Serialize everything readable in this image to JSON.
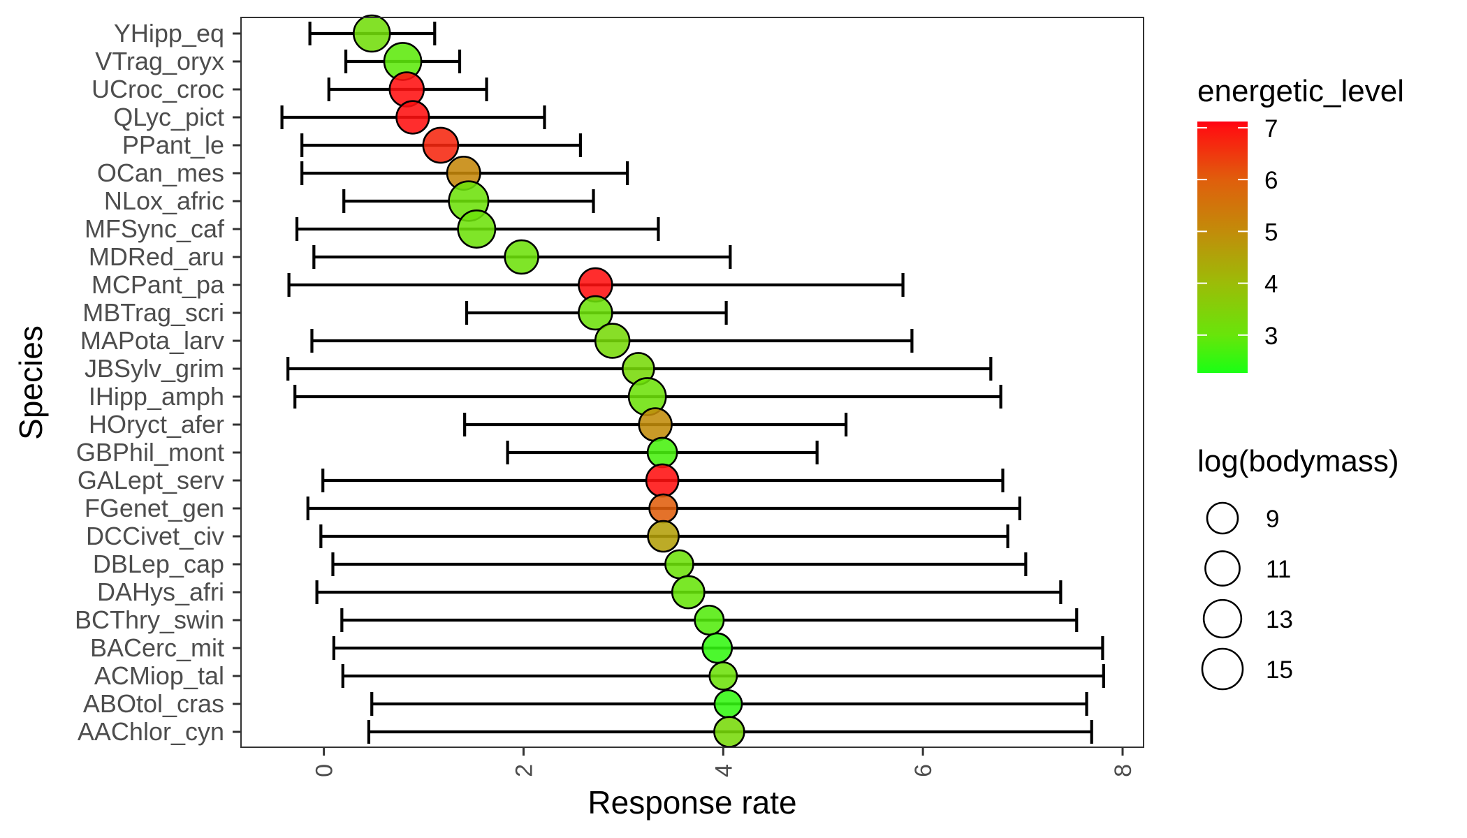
{
  "chart_data": {
    "type": "scatter",
    "subtype": "dot-and-errorbar",
    "title": "",
    "xlabel": "Response rate",
    "ylabel": "Species",
    "xlim": [
      -0.83,
      8.21
    ],
    "x_ticks": [
      0,
      2,
      4,
      6,
      8
    ],
    "x_tick_labels": [
      "0",
      "2",
      "4",
      "6",
      "8"
    ],
    "x_tick_label_rotation": "vertical",
    "grid": false,
    "panel_border": true,
    "categories": [
      "YHipp_eq",
      "VTrag_oryx",
      "UCroc_croc",
      "QLyc_pict",
      "PPant_le",
      "OCan_mes",
      "NLox_afric",
      "MFSync_caf",
      "MDRed_aru",
      "MCPant_pa",
      "MBTrag_scri",
      "MAPota_larv",
      "JBSylv_grim",
      "IHipp_amph",
      "HOryct_afer",
      "GBPhil_mont",
      "GALept_serv",
      "FGenet_gen",
      "DCCivet_civ",
      "DBLep_cap",
      "DAHys_afri",
      "BCThry_swin",
      "BACerc_mit",
      "ACMiop_tal",
      "ABOtol_cras",
      "AAChlor_cyn"
    ],
    "points": [
      {
        "species": "YHipp_eq",
        "response_rate": 0.48,
        "lower": -0.14,
        "upper": 1.11,
        "energetic_level": 3.2,
        "log_bodymass": 12.2
      },
      {
        "species": "VTrag_oryx",
        "response_rate": 0.79,
        "lower": 0.22,
        "upper": 1.36,
        "energetic_level": 2.9,
        "log_bodymass": 12.7
      },
      {
        "species": "UCroc_croc",
        "response_rate": 0.83,
        "lower": 0.05,
        "upper": 1.63,
        "energetic_level": 7.0,
        "log_bodymass": 10.9
      },
      {
        "species": "QLyc_pict",
        "response_rate": 0.89,
        "lower": -0.42,
        "upper": 2.21,
        "energetic_level": 7.0,
        "log_bodymass": 10.0
      },
      {
        "species": "PPant_le",
        "response_rate": 1.17,
        "lower": -0.22,
        "upper": 2.57,
        "energetic_level": 6.7,
        "log_bodymass": 11.4
      },
      {
        "species": "OCan_mes",
        "response_rate": 1.4,
        "lower": -0.22,
        "upper": 3.04,
        "energetic_level": 5.1,
        "log_bodymass": 10.3
      },
      {
        "species": "NLox_afric",
        "response_rate": 1.45,
        "lower": 0.2,
        "upper": 2.7,
        "energetic_level": 3.1,
        "log_bodymass": 14.3
      },
      {
        "species": "MFSync_caf",
        "response_rate": 1.53,
        "lower": -0.27,
        "upper": 3.35,
        "energetic_level": 3.1,
        "log_bodymass": 12.8
      },
      {
        "species": "MDRed_aru",
        "response_rate": 1.98,
        "lower": -0.1,
        "upper": 4.07,
        "energetic_level": 3.1,
        "log_bodymass": 10.5
      },
      {
        "species": "MCPant_pa",
        "response_rate": 2.72,
        "lower": -0.35,
        "upper": 5.8,
        "energetic_level": 7.0,
        "log_bodymass": 10.5
      },
      {
        "species": "MBTrag_scri",
        "response_rate": 2.72,
        "lower": 1.43,
        "upper": 4.03,
        "energetic_level": 3.1,
        "log_bodymass": 10.5
      },
      {
        "species": "MAPota_larv",
        "response_rate": 2.89,
        "lower": -0.12,
        "upper": 5.89,
        "energetic_level": 3.3,
        "log_bodymass": 10.9
      },
      {
        "species": "JBSylv_grim",
        "response_rate": 3.15,
        "lower": -0.36,
        "upper": 6.68,
        "energetic_level": 3.3,
        "log_bodymass": 9.4
      },
      {
        "species": "IHipp_amph",
        "response_rate": 3.24,
        "lower": -0.29,
        "upper": 6.78,
        "energetic_level": 3.1,
        "log_bodymass": 12.7
      },
      {
        "species": "HOryct_afer",
        "response_rate": 3.32,
        "lower": 1.41,
        "upper": 5.23,
        "energetic_level": 5.0,
        "log_bodymass": 10.1
      },
      {
        "species": "GBPhil_mont",
        "response_rate": 3.39,
        "lower": 1.84,
        "upper": 4.94,
        "energetic_level": 2.7,
        "log_bodymass": 8.3
      },
      {
        "species": "GALept_serv",
        "response_rate": 3.39,
        "lower": -0.01,
        "upper": 6.8,
        "energetic_level": 7.0,
        "log_bodymass": 9.8
      },
      {
        "species": "FGenet_gen",
        "response_rate": 3.4,
        "lower": -0.16,
        "upper": 6.97,
        "energetic_level": 6.0,
        "log_bodymass": 7.6
      },
      {
        "species": "DCCivet_civ",
        "response_rate": 3.4,
        "lower": -0.03,
        "upper": 6.85,
        "energetic_level": 4.6,
        "log_bodymass": 9.0
      },
      {
        "species": "DBLep_cap",
        "response_rate": 3.56,
        "lower": 0.09,
        "upper": 7.03,
        "energetic_level": 3.1,
        "log_bodymass": 7.6
      },
      {
        "species": "DAHys_afri",
        "response_rate": 3.65,
        "lower": -0.07,
        "upper": 7.38,
        "energetic_level": 3.0,
        "log_bodymass": 9.8
      },
      {
        "species": "BCThry_swin",
        "response_rate": 3.86,
        "lower": 0.18,
        "upper": 7.54,
        "energetic_level": 2.8,
        "log_bodymass": 8.1
      },
      {
        "species": "BACerc_mit",
        "response_rate": 3.94,
        "lower": 0.1,
        "upper": 7.8,
        "energetic_level": 2.5,
        "log_bodymass": 8.3
      },
      {
        "species": "ACMiop_tal",
        "response_rate": 4.0,
        "lower": 0.19,
        "upper": 7.81,
        "energetic_level": 3.1,
        "log_bodymass": 7.3
      },
      {
        "species": "ABOtol_cras",
        "response_rate": 4.05,
        "lower": 0.48,
        "upper": 7.64,
        "energetic_level": 2.5,
        "log_bodymass": 7.3
      },
      {
        "species": "AAChlor_cyn",
        "response_rate": 4.06,
        "lower": 0.45,
        "upper": 7.69,
        "energetic_level": 3.3,
        "log_bodymass": 8.6
      }
    ],
    "legends": {
      "color": {
        "title": "energetic_level",
        "type": "colorbar",
        "placement": "right-top",
        "range": [
          2.27,
          7.12
        ],
        "breaks": [
          7,
          6,
          5,
          4,
          3
        ],
        "break_labels": [
          "7",
          "6",
          "5",
          "4",
          "3"
        ],
        "color_stops": [
          {
            "value": 2.27,
            "color": "#1aff14"
          },
          {
            "value": 3.0,
            "color": "#68e50a"
          },
          {
            "value": 4.0,
            "color": "#9cbc08"
          },
          {
            "value": 5.0,
            "color": "#c28c0a"
          },
          {
            "value": 6.0,
            "color": "#e05e0c"
          },
          {
            "value": 7.0,
            "color": "#ff1010"
          },
          {
            "value": 7.12,
            "color": "#ff0012"
          }
        ]
      },
      "size": {
        "title": "log(bodymass)",
        "type": "size",
        "placement": "right-bottom",
        "breaks": [
          9,
          11,
          13,
          15
        ],
        "break_labels": [
          "9",
          "11",
          "13",
          "15"
        ]
      }
    }
  }
}
